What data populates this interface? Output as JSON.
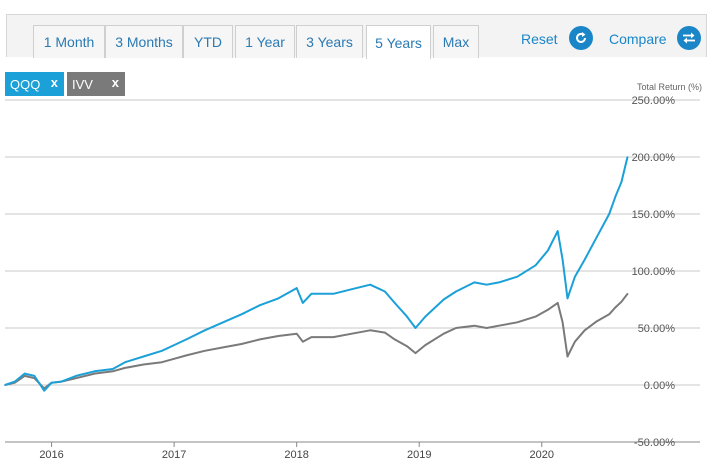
{
  "toolbar": {
    "tabs": [
      "1 Month",
      "3 Months",
      "YTD",
      "1 Year",
      "3 Years",
      "5 Years",
      "Max"
    ],
    "active_tab": "5 Years",
    "reset_label": "Reset",
    "compare_label": "Compare"
  },
  "chips": [
    {
      "label": "QQQ",
      "close": "x",
      "color": "#1ba0d8"
    },
    {
      "label": "IVV",
      "close": "x",
      "color": "#7a7a7a"
    }
  ],
  "chart_data": {
    "type": "line",
    "ylabel": "Total Return (%)",
    "y_ticks": [
      "250.00%",
      "200.00%",
      "150.00%",
      "100.00%",
      "50.00%",
      "0.00%",
      "-50.00%"
    ],
    "y_tick_values": [
      250,
      200,
      150,
      100,
      50,
      0,
      -50
    ],
    "ylim": [
      -50,
      250
    ],
    "x_ticks": [
      "2016",
      "2017",
      "2018",
      "2019",
      "2020"
    ],
    "x_tick_values": [
      2016.0,
      2017.0,
      2018.0,
      2019.0,
      2020.0
    ],
    "xlim": [
      2015.62,
      2020.72
    ],
    "grid": true,
    "series": [
      {
        "name": "QQQ",
        "color": "#1ba0d8",
        "x": [
          2015.62,
          2015.7,
          2015.78,
          2015.86,
          2015.94,
          2016.0,
          2016.08,
          2016.2,
          2016.35,
          2016.5,
          2016.6,
          2016.75,
          2016.9,
          2017.0,
          2017.1,
          2017.25,
          2017.4,
          2017.55,
          2017.7,
          2017.85,
          2018.0,
          2018.05,
          2018.12,
          2018.3,
          2018.45,
          2018.6,
          2018.72,
          2018.8,
          2018.9,
          2018.97,
          2019.05,
          2019.2,
          2019.3,
          2019.45,
          2019.55,
          2019.65,
          2019.8,
          2019.95,
          2020.05,
          2020.13,
          2020.17,
          2020.21,
          2020.27,
          2020.35,
          2020.45,
          2020.55,
          2020.6,
          2020.65,
          2020.7
        ],
        "values": [
          0,
          3,
          10,
          8,
          -5,
          2,
          3,
          8,
          12,
          14,
          20,
          25,
          30,
          35,
          40,
          48,
          55,
          62,
          70,
          76,
          85,
          72,
          80,
          80,
          84,
          88,
          82,
          72,
          60,
          50,
          60,
          75,
          82,
          90,
          88,
          90,
          95,
          105,
          118,
          135,
          110,
          76,
          95,
          110,
          130,
          150,
          165,
          178,
          200
        ]
      },
      {
        "name": "IVV",
        "color": "#7a7a7a",
        "x": [
          2015.62,
          2015.7,
          2015.78,
          2015.86,
          2015.94,
          2016.0,
          2016.08,
          2016.2,
          2016.35,
          2016.5,
          2016.6,
          2016.75,
          2016.9,
          2017.0,
          2017.1,
          2017.25,
          2017.4,
          2017.55,
          2017.7,
          2017.85,
          2018.0,
          2018.05,
          2018.12,
          2018.3,
          2018.45,
          2018.6,
          2018.72,
          2018.8,
          2018.9,
          2018.97,
          2019.05,
          2019.2,
          2019.3,
          2019.45,
          2019.55,
          2019.65,
          2019.8,
          2019.95,
          2020.05,
          2020.13,
          2020.17,
          2020.21,
          2020.27,
          2020.35,
          2020.45,
          2020.55,
          2020.6,
          2020.65,
          2020.7
        ],
        "values": [
          0,
          2,
          8,
          6,
          -3,
          2,
          3,
          6,
          10,
          12,
          15,
          18,
          20,
          23,
          26,
          30,
          33,
          36,
          40,
          43,
          45,
          38,
          42,
          42,
          45,
          48,
          46,
          40,
          34,
          28,
          35,
          45,
          50,
          52,
          50,
          52,
          55,
          60,
          66,
          72,
          55,
          25,
          38,
          48,
          56,
          62,
          68,
          73,
          80
        ]
      }
    ]
  }
}
